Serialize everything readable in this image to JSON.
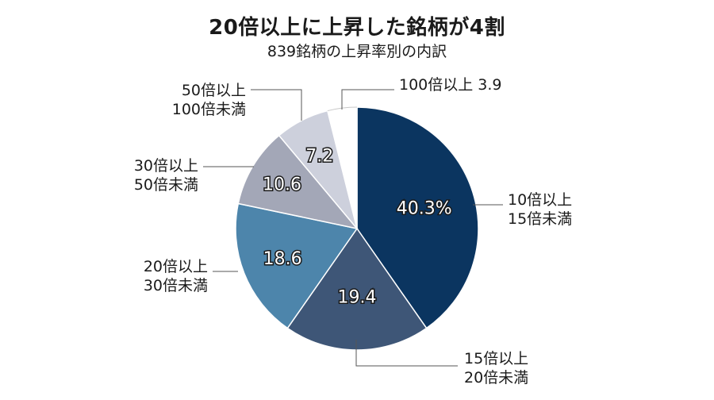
{
  "chart_data": {
    "type": "pie",
    "title": "20倍以上に上昇した銘柄が4割",
    "subtitle": "839銘柄の上昇率別の内訳",
    "slices": [
      {
        "label": [
          "10倍以上",
          "15倍未満"
        ],
        "value": 40.3,
        "value_label": "40.3%",
        "color": "#0b3560",
        "text_color": "#ffffff"
      },
      {
        "label": [
          "15倍以上",
          "20倍未満"
        ],
        "value": 19.4,
        "value_label": "19.4",
        "color": "#3e5677",
        "text_color": "#ffffff"
      },
      {
        "label": [
          "20倍以上",
          "30倍未満"
        ],
        "value": 18.6,
        "value_label": "18.6",
        "color": "#4d85ab",
        "text_color": "#ffffff"
      },
      {
        "label": [
          "30倍以上",
          "50倍未満"
        ],
        "value": 10.6,
        "value_label": "10.6",
        "color": "#a3a7b7",
        "text_color": "#ffffff"
      },
      {
        "label": [
          "50倍以上",
          "100倍未満"
        ],
        "value": 7.2,
        "value_label": "7.2",
        "color": "#cdd0dc",
        "text_color": "#ffffff"
      },
      {
        "label": [
          "100倍以上  3.9"
        ],
        "value": 3.9,
        "value_label": "",
        "color": "#ffffff",
        "text_color": "#1a1a1a"
      }
    ]
  }
}
